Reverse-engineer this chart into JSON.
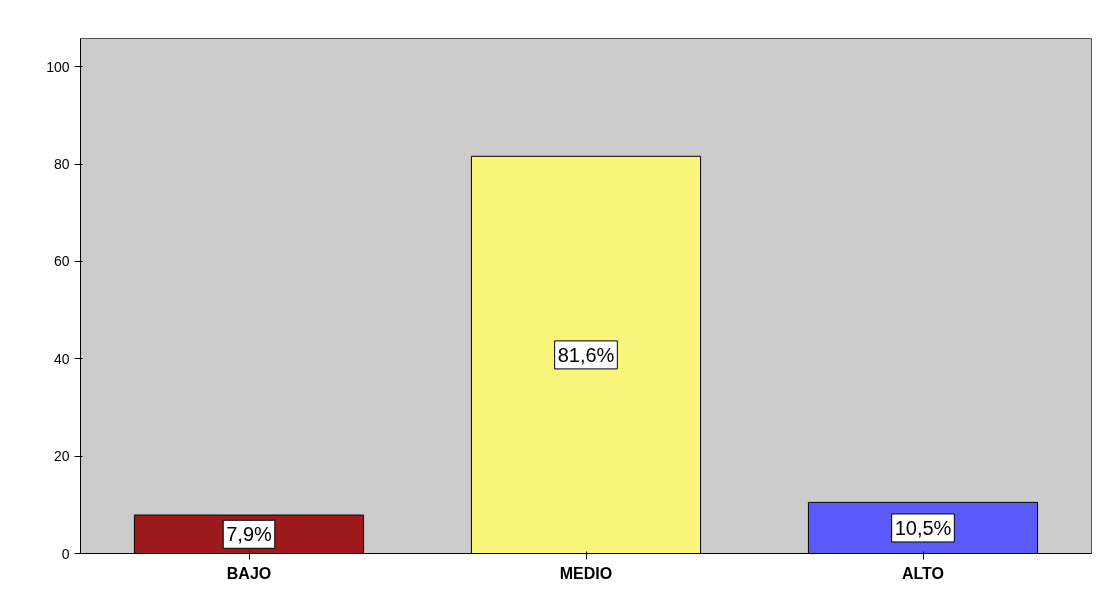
{
  "chart_data": {
    "type": "bar",
    "categories": [
      "BAJO",
      "MEDIO",
      "ALTO"
    ],
    "values": [
      7.9,
      81.6,
      10.5
    ],
    "colors": [
      "#9c1a1c",
      "#f8f57a",
      "#5b5bfb"
    ],
    "value_labels": [
      "7,9%",
      "81,6%",
      "10,5%"
    ],
    "ylim": [
      0,
      105.8
    ],
    "yticks": [
      0,
      20,
      40,
      60,
      80,
      100
    ],
    "grid": false
  }
}
